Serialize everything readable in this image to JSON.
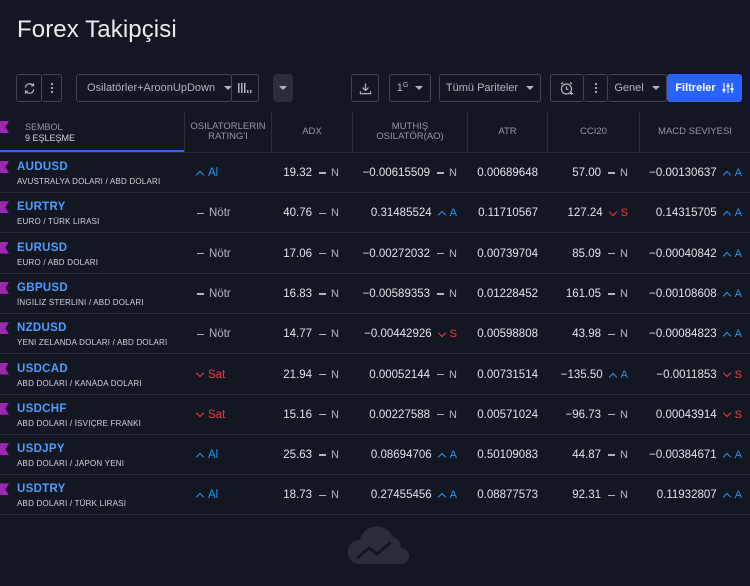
{
  "page": {
    "title": "Forex Takipçisi"
  },
  "toolbar": {
    "preset_label": "Osilatörler+AroonUpDown",
    "interval_label": "1",
    "interval_sup": "G",
    "pairs_label": "Tümü Pariteler",
    "view_label": "Genel",
    "filters_label": "Filtreler"
  },
  "columns": {
    "symbol": "SEMBOL",
    "matches": "9 EŞLEŞME",
    "osc_rating_1": "OSILATORLERIN",
    "osc_rating_2": "RATING'I",
    "adx": "ADX",
    "ao_1": "MUTHIŞ",
    "ao_2": "OSILATÖR(AO)",
    "atr": "ATR",
    "cci": "CCI20",
    "macd": "MACD SEVIYESI"
  },
  "colors": {
    "up": "#2196f3",
    "down": "#f23645",
    "neutral": "#b2b5be",
    "symbol": "#4c9fff",
    "accent": "#2962ff",
    "flag": "#9c27b0"
  },
  "rows": [
    {
      "symbol": "AUDUSD",
      "desc": "AVUSTRALYA DOLARI / ABD DOLARI",
      "rating": "Al",
      "rating_dir": "up",
      "adx": "19.32",
      "adx_sig": "N",
      "adx_dir": "neu",
      "ao": "−0.00615509",
      "ao_sig": "N",
      "ao_dir": "neu",
      "atr": "0.00689648",
      "cci": "57.00",
      "cci_sig": "N",
      "cci_dir": "neu",
      "macd": "−0.00130637",
      "macd_sig": "A",
      "macd_dir": "up"
    },
    {
      "symbol": "EURTRY",
      "desc": "EURO / TÜRK LIRASI",
      "rating": "Nötr",
      "rating_dir": "neu",
      "adx": "40.76",
      "adx_sig": "N",
      "adx_dir": "neu",
      "ao": "0.31485524",
      "ao_sig": "A",
      "ao_dir": "up",
      "atr": "0.11710567",
      "cci": "127.24",
      "cci_sig": "S",
      "cci_dir": "down",
      "macd": "0.14315705",
      "macd_sig": "A",
      "macd_dir": "up"
    },
    {
      "symbol": "EURUSD",
      "desc": "EURO / ABD DOLARI",
      "rating": "Nötr",
      "rating_dir": "neu",
      "adx": "17.06",
      "adx_sig": "N",
      "adx_dir": "neu",
      "ao": "−0.00272032",
      "ao_sig": "N",
      "ao_dir": "neu",
      "atr": "0.00739704",
      "cci": "85.09",
      "cci_sig": "N",
      "cci_dir": "neu",
      "macd": "−0.00040842",
      "macd_sig": "A",
      "macd_dir": "up"
    },
    {
      "symbol": "GBPUSD",
      "desc": "İNGILIZ STERLINI / ABD DOLARI",
      "rating": "Nötr",
      "rating_dir": "neu",
      "adx": "16.83",
      "adx_sig": "N",
      "adx_dir": "neu",
      "ao": "−0.00589353",
      "ao_sig": "N",
      "ao_dir": "neu",
      "atr": "0.01228452",
      "cci": "161.05",
      "cci_sig": "N",
      "cci_dir": "neu",
      "macd": "−0.00108608",
      "macd_sig": "A",
      "macd_dir": "up"
    },
    {
      "symbol": "NZDUSD",
      "desc": "YENI ZELANDA DOLARI / ABD DOLARI",
      "rating": "Nötr",
      "rating_dir": "neu",
      "adx": "14.77",
      "adx_sig": "N",
      "adx_dir": "neu",
      "ao": "−0.00442926",
      "ao_sig": "S",
      "ao_dir": "down",
      "atr": "0.00598808",
      "cci": "43.98",
      "cci_sig": "N",
      "cci_dir": "neu",
      "macd": "−0.00084823",
      "macd_sig": "A",
      "macd_dir": "up"
    },
    {
      "symbol": "USDCAD",
      "desc": "ABD DOLARI / KANADA DOLARI",
      "rating": "Sat",
      "rating_dir": "down",
      "adx": "21.94",
      "adx_sig": "N",
      "adx_dir": "neu",
      "ao": "0.00052144",
      "ao_sig": "N",
      "ao_dir": "neu",
      "atr": "0.00731514",
      "cci": "−135.50",
      "cci_sig": "A",
      "cci_dir": "up",
      "macd": "−0.0011853",
      "macd_sig": "S",
      "macd_dir": "down"
    },
    {
      "symbol": "USDCHF",
      "desc": "ABD DOLARI / İSVIÇRE FRANKI",
      "rating": "Sat",
      "rating_dir": "down",
      "adx": "15.16",
      "adx_sig": "N",
      "adx_dir": "neu",
      "ao": "0.00227588",
      "ao_sig": "N",
      "ao_dir": "neu",
      "atr": "0.00571024",
      "cci": "−96.73",
      "cci_sig": "N",
      "cci_dir": "neu",
      "macd": "0.00043914",
      "macd_sig": "S",
      "macd_dir": "down"
    },
    {
      "symbol": "USDJPY",
      "desc": "ABD DOLARI / JAPON YENI",
      "rating": "Al",
      "rating_dir": "up",
      "adx": "25.63",
      "adx_sig": "N",
      "adx_dir": "neu",
      "ao": "0.08694706",
      "ao_sig": "A",
      "ao_dir": "up",
      "atr": "0.50109083",
      "cci": "44.87",
      "cci_sig": "N",
      "cci_dir": "neu",
      "macd": "−0.00384671",
      "macd_sig": "A",
      "macd_dir": "up"
    },
    {
      "symbol": "USDTRY",
      "desc": "ABD DOLARI / TÜRK LIRASI",
      "rating": "Al",
      "rating_dir": "up",
      "adx": "18.73",
      "adx_sig": "N",
      "adx_dir": "neu",
      "ao": "0.27455456",
      "ao_sig": "A",
      "ao_dir": "up",
      "atr": "0.08877573",
      "cci": "92.31",
      "cci_sig": "N",
      "cci_dir": "neu",
      "macd": "0.11932807",
      "macd_sig": "A",
      "macd_dir": "up"
    }
  ]
}
